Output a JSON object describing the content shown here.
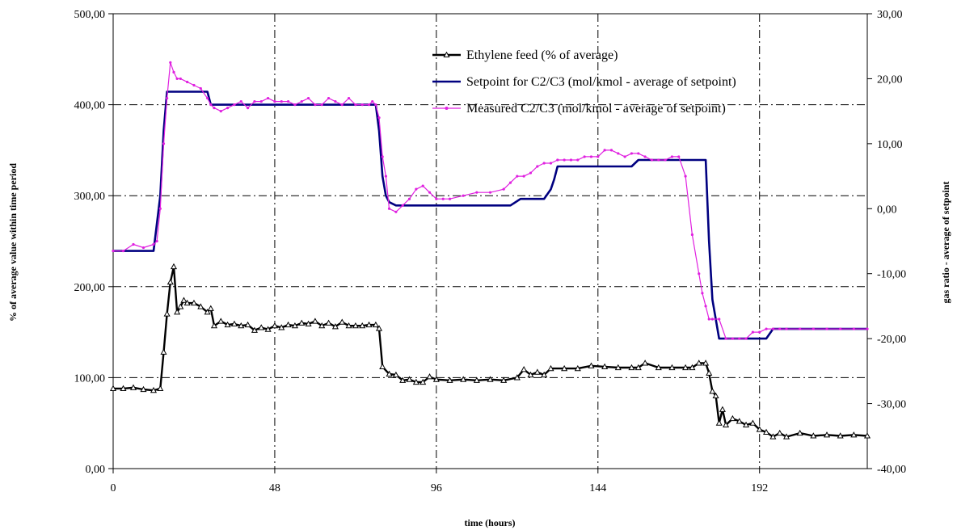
{
  "chart_data": {
    "type": "line",
    "title": "",
    "xlabel": "time (hours)",
    "ylabel": "% of average value within time period",
    "y2label": "gas ratio - average of setpoint",
    "xlim": [
      0,
      224
    ],
    "ylim": [
      0,
      500
    ],
    "y2lim": [
      -40,
      30
    ],
    "x_ticks": [
      0,
      48,
      96,
      144,
      192
    ],
    "x_tick_labels": [
      "0",
      "48",
      "96",
      "144",
      "192"
    ],
    "y_ticks": [
      0,
      100,
      200,
      300,
      400,
      500
    ],
    "y_tick_labels": [
      "0,00",
      "100,00",
      "200,00",
      "300,00",
      "400,00",
      "500,00"
    ],
    "y2_ticks": [
      -40,
      -30,
      -20,
      -10,
      0,
      10,
      20,
      30
    ],
    "y2_tick_labels": [
      "-40,00",
      "-30,00",
      "-20,00",
      "-10,00",
      "0,00",
      "10,00",
      "20,00",
      "30,00"
    ],
    "grid": true,
    "legend_position": "top-right",
    "series": [
      {
        "name": "Ethylene feed (% of average)",
        "axis": "left",
        "color": "#000000",
        "marker": "triangle",
        "x": [
          0,
          3,
          6,
          9,
          12,
          14,
          15,
          16,
          17,
          18,
          19,
          20,
          21,
          22,
          24,
          26,
          28,
          29,
          30,
          32,
          34,
          36,
          38,
          40,
          42,
          44,
          46,
          48,
          50,
          52,
          54,
          56,
          58,
          60,
          62,
          64,
          66,
          68,
          70,
          72,
          74,
          76,
          78,
          79,
          80,
          82,
          84,
          86,
          88,
          90,
          92,
          94,
          96,
          100,
          104,
          108,
          112,
          116,
          120,
          122,
          124,
          126,
          128,
          130,
          134,
          138,
          142,
          146,
          150,
          154,
          156,
          158,
          162,
          166,
          170,
          172,
          174,
          176,
          177,
          178,
          179,
          180,
          181,
          182,
          184,
          186,
          188,
          190,
          192,
          194,
          196,
          198,
          200,
          204,
          208,
          212,
          216,
          220,
          224
        ],
        "y": [
          88,
          88,
          89,
          87,
          86,
          88,
          128,
          170,
          205,
          222,
          172,
          178,
          185,
          182,
          182,
          178,
          172,
          176,
          157,
          162,
          158,
          159,
          157,
          158,
          152,
          155,
          153,
          157,
          155,
          158,
          157,
          160,
          159,
          162,
          157,
          160,
          156,
          161,
          157,
          157,
          157,
          158,
          158,
          154,
          112,
          104,
          103,
          97,
          98,
          95,
          95,
          101,
          98,
          97,
          98,
          97,
          98,
          97,
          100,
          109,
          103,
          106,
          103,
          110,
          110,
          110,
          113,
          112,
          111,
          111,
          111,
          116,
          111,
          111,
          111,
          111,
          116,
          116,
          105,
          85,
          80,
          50,
          65,
          48,
          55,
          52,
          48,
          50,
          43,
          40,
          35,
          39,
          35,
          39,
          36,
          37,
          36,
          37,
          36
        ]
      },
      {
        "name": "Setpoint for C2/C3 (mol/kmol - average of setpoint)",
        "axis": "right",
        "color": "#000080",
        "x": [
          0,
          12,
          14,
          15,
          16,
          18,
          28,
          29,
          30,
          40,
          60,
          78,
          79,
          80,
          81,
          82,
          84,
          90,
          100,
          110,
          118,
          121,
          124,
          128,
          130,
          131,
          132,
          134,
          140,
          150,
          154,
          156,
          158,
          160,
          170,
          176,
          177,
          178,
          180,
          194,
          196,
          198,
          224
        ],
        "y": [
          -6.5,
          -6.5,
          2,
          12,
          18,
          18,
          18,
          16,
          16,
          16,
          16,
          16,
          12,
          5,
          2,
          1,
          0.5,
          0.5,
          0.5,
          0.5,
          0.5,
          1.5,
          1.5,
          1.5,
          3,
          4.5,
          6.5,
          6.5,
          6.5,
          6.5,
          6.5,
          7.5,
          7.5,
          7.5,
          7.5,
          7.5,
          -5,
          -14,
          -20,
          -20,
          -18.5,
          -18.5,
          -18.5
        ]
      },
      {
        "name": "Measured C2/C3 (mol/kmol - average of setpoint)",
        "axis": "right",
        "color": "#e020e0",
        "marker": "dot",
        "x": [
          0,
          3,
          6,
          9,
          12,
          13,
          14,
          15,
          16,
          17,
          18,
          19,
          20,
          22,
          24,
          26,
          28,
          29,
          30,
          32,
          34,
          36,
          38,
          40,
          42,
          44,
          46,
          48,
          50,
          52,
          54,
          56,
          58,
          60,
          62,
          64,
          66,
          68,
          70,
          72,
          74,
          76,
          77,
          78,
          79,
          80,
          81,
          82,
          84,
          86,
          88,
          90,
          92,
          94,
          96,
          98,
          100,
          104,
          108,
          112,
          116,
          118,
          120,
          122,
          124,
          126,
          128,
          130,
          132,
          134,
          136,
          138,
          140,
          142,
          144,
          146,
          148,
          150,
          152,
          154,
          156,
          158,
          160,
          162,
          164,
          166,
          168,
          170,
          172,
          174,
          175,
          176,
          177,
          178,
          180,
          182,
          184,
          186,
          188,
          190,
          192,
          194,
          196,
          198,
          200,
          204,
          208,
          212,
          216,
          220,
          224
        ],
        "y": [
          -6.5,
          -6.5,
          -5.5,
          -6,
          -5.5,
          -5,
          0,
          10,
          17,
          22.5,
          21,
          20,
          20,
          19.5,
          19,
          18.5,
          17,
          16,
          15.5,
          15,
          15.5,
          16,
          16.5,
          15.5,
          16.5,
          16.5,
          17,
          16.5,
          16.5,
          16.5,
          16,
          16.5,
          17,
          16,
          16,
          17,
          16.5,
          16,
          17,
          16,
          16,
          16,
          16.5,
          16,
          14,
          8,
          5,
          0,
          -0.5,
          0.5,
          1.5,
          3,
          3.5,
          2.5,
          1.5,
          1.5,
          1.5,
          2,
          2.5,
          2.5,
          3,
          4,
          5,
          5,
          5.5,
          6.5,
          7,
          7,
          7.5,
          7.5,
          7.5,
          7.5,
          8,
          8,
          8,
          9,
          9,
          8.5,
          8,
          8.5,
          8.5,
          8,
          7.5,
          7.5,
          7.5,
          8,
          8,
          5,
          -4,
          -10,
          -13,
          -15,
          -17,
          -17,
          -17,
          -20,
          -20,
          -20,
          -20,
          -19,
          -19,
          -18.5,
          -18.5,
          -18.5,
          -18.5,
          -18.5,
          -18.5,
          -18.5,
          -18.5,
          -18.5,
          -18.5
        ]
      }
    ]
  }
}
